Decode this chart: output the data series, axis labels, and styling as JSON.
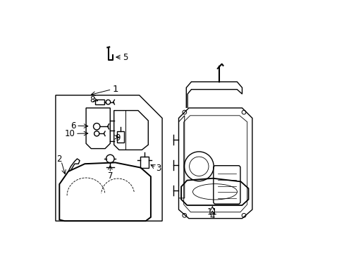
{
  "background_color": "#ffffff",
  "line_color": "#000000",
  "line_width": 1.0,
  "fig_width": 4.89,
  "fig_height": 3.6,
  "dpi": 100,
  "font_size": 8.5
}
